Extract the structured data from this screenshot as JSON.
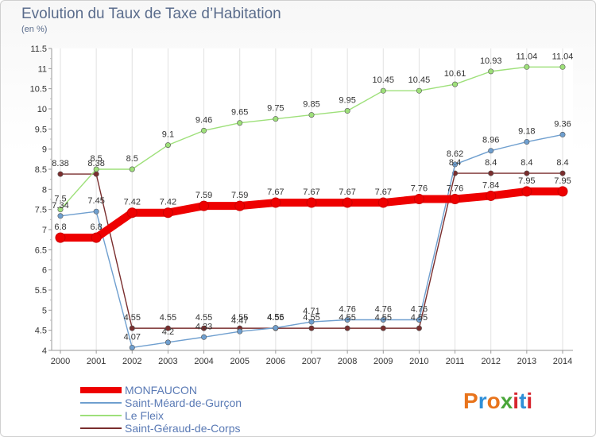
{
  "title": "Evolution du Taux de Taxe d’Habitation",
  "unit_label": "(en %)",
  "logo": {
    "text": "Proxiti",
    "colors": [
      "#e8741c",
      "#2f8fd8",
      "#e8741c",
      "#4aa63a",
      "#d7262f",
      "#2f8fd8",
      "#d7262f"
    ]
  },
  "chart_data": {
    "type": "line",
    "x": [
      "2000",
      "2001",
      "2002",
      "2003",
      "2004",
      "2005",
      "2006",
      "2007",
      "2008",
      "2009",
      "2010",
      "2011",
      "2012",
      "2013",
      "2014"
    ],
    "ylim": [
      4,
      11.5
    ],
    "yticks": [
      "4",
      "4.5",
      "5",
      "5.5",
      "6",
      "6.5",
      "7",
      "7.5",
      "8",
      "8.5",
      "9",
      "9.5",
      "10",
      "10.5",
      "11",
      "11.5"
    ],
    "grid": "vertical",
    "legend_position": "bottom-left",
    "series": [
      {
        "name": "MONFAUCON",
        "color": "#ee0000",
        "values": [
          6.8,
          6.8,
          7.42,
          7.42,
          7.59,
          7.59,
          7.67,
          7.67,
          7.67,
          7.67,
          7.76,
          7.76,
          7.84,
          7.95,
          7.95
        ],
        "labels": [
          "6.8",
          "6.8",
          "7.42",
          "7.42",
          "7.59",
          "7.59",
          "7.67",
          "7.67",
          "7.67",
          "7.67",
          "7.76",
          "7.76",
          "7.84",
          "7.95",
          "7.95"
        ]
      },
      {
        "name": "Saint-Méard-de-Gurçon",
        "color": "#6f9fcf",
        "values": [
          7.34,
          7.45,
          4.07,
          4.2,
          4.33,
          4.47,
          4.56,
          4.71,
          4.76,
          4.76,
          4.76,
          8.62,
          8.96,
          9.18,
          9.36
        ],
        "labels": [
          "7.34",
          "7.45",
          "4.07",
          "4.2",
          "4.33",
          "4.47",
          "4.56",
          "4.71",
          "4.76",
          "4.76",
          "4.76",
          "8.62",
          "8.96",
          "9.18",
          "9.36"
        ]
      },
      {
        "name": "Le Fleix",
        "color": "#9ee07a",
        "values": [
          7.5,
          8.5,
          8.5,
          9.1,
          9.46,
          9.65,
          9.75,
          9.85,
          9.95,
          10.45,
          10.45,
          10.61,
          10.93,
          11.04,
          11.04
        ],
        "labels": [
          "7.5",
          "8.5",
          "8.5",
          "9.1",
          "9.46",
          "9.65",
          "9.75",
          "9.85",
          "9.95",
          "10.45",
          "10.45",
          "10.61",
          "10.93",
          "11.04",
          "11.04"
        ]
      },
      {
        "name": "Saint-Géraud-de-Corps",
        "color": "#7a2e2e",
        "values": [
          8.38,
          8.38,
          4.55,
          4.55,
          4.55,
          4.55,
          4.55,
          4.55,
          4.55,
          4.55,
          4.55,
          8.4,
          8.4,
          8.4,
          8.4
        ],
        "labels": [
          "8.38",
          "8.38",
          "4.55",
          "4.55",
          "4.55",
          "4.55",
          "4.55",
          "4.55",
          "4.55",
          "4.55",
          "4.55",
          "8.4",
          "8.4",
          "8.4",
          "8.4"
        ]
      }
    ]
  }
}
